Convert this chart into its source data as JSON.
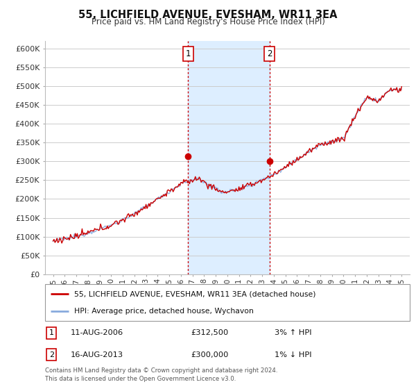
{
  "title": "55, LICHFIELD AVENUE, EVESHAM, WR11 3EA",
  "subtitle": "Price paid vs. HM Land Registry's House Price Index (HPI)",
  "legend_line1": "55, LICHFIELD AVENUE, EVESHAM, WR11 3EA (detached house)",
  "legend_line2": "HPI: Average price, detached house, Wychavon",
  "annotation1_date": "11-AUG-2006",
  "annotation1_price": "£312,500",
  "annotation1_hpi": "3% ↑ HPI",
  "annotation2_date": "16-AUG-2013",
  "annotation2_price": "£300,000",
  "annotation2_hpi": "1% ↓ HPI",
  "footnote": "Contains HM Land Registry data © Crown copyright and database right 2024.\nThis data is licensed under the Open Government Licence v3.0.",
  "ylim": [
    0,
    620000
  ],
  "yticks": [
    0,
    50000,
    100000,
    150000,
    200000,
    250000,
    300000,
    350000,
    400000,
    450000,
    500000,
    550000,
    600000
  ],
  "ytick_labels": [
    "£0",
    "£50K",
    "£100K",
    "£150K",
    "£200K",
    "£250K",
    "£300K",
    "£350K",
    "£400K",
    "£450K",
    "£500K",
    "£550K",
    "£600K"
  ],
  "line_color_property": "#cc0000",
  "line_color_hpi": "#88aadd",
  "shaded_region_color": "#ddeeff",
  "vline_color": "#cc0000",
  "marker1_x": 2006.62,
  "marker1_y": 312500,
  "marker2_x": 2013.62,
  "marker2_y": 300000,
  "shaded_x1": 2006.62,
  "shaded_x2": 2013.62,
  "x_start": 1995,
  "x_end": 2025,
  "xlim_left": 1994.3,
  "xlim_right": 2025.7
}
